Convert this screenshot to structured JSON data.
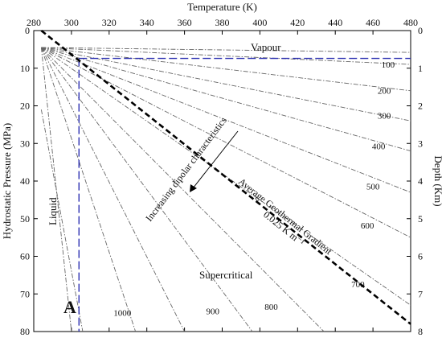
{
  "chart_data": {
    "type": "line",
    "title": "",
    "x_axis": {
      "label": "Temperature (K)",
      "position": "top",
      "range": [
        280,
        480
      ],
      "ticks": [
        "280",
        "300",
        "320",
        "340",
        "360",
        "380",
        "400",
        "420",
        "440",
        "460",
        "480"
      ]
    },
    "y_axis_left": {
      "label": "Hydrostatic Pressure (MPa)",
      "range": [
        0,
        80
      ],
      "inverted": true,
      "ticks": [
        "0",
        "10",
        "20",
        "30",
        "40",
        "50",
        "60",
        "70",
        "80"
      ]
    },
    "y_axis_right": {
      "label": "Depth (Km)",
      "range": [
        0,
        8
      ],
      "inverted": true,
      "ticks": [
        "0",
        "1",
        "2",
        "3",
        "4",
        "5",
        "6",
        "7",
        "8"
      ]
    },
    "grid": false,
    "contour_origin": {
      "x": 284,
      "y": 4.5
    },
    "contours": [
      {
        "label": "100",
        "end": {
          "x": 480,
          "y": 9
        },
        "label_at": {
          "x": 468,
          "y": 9.8
        }
      },
      {
        "label": "200",
        "end": {
          "x": 480,
          "y": 16
        },
        "label_at": {
          "x": 466,
          "y": 16.8
        }
      },
      {
        "label": "300",
        "end": {
          "x": 480,
          "y": 24
        },
        "label_at": {
          "x": 466,
          "y": 23.4
        }
      },
      {
        "label": "400",
        "end": {
          "x": 480,
          "y": 32
        },
        "label_at": {
          "x": 463,
          "y": 31.6
        }
      },
      {
        "label": "500",
        "end": {
          "x": 480,
          "y": 43
        },
        "label_at": {
          "x": 460,
          "y": 42.2
        }
      },
      {
        "label": "600",
        "end": {
          "x": 480,
          "y": 55
        },
        "label_at": {
          "x": 457,
          "y": 52.6
        }
      },
      {
        "label": "700",
        "end": {
          "x": 480,
          "y": 73
        },
        "label_at": {
          "x": 452,
          "y": 68.2
        }
      },
      {
        "label": "800",
        "end": {
          "x": 434,
          "y": 80
        },
        "label_at": {
          "x": 406,
          "y": 74.2
        }
      },
      {
        "label": "900",
        "end": {
          "x": 396,
          "y": 80
        },
        "label_at": {
          "x": 375,
          "y": 75.4
        }
      },
      {
        "label": "1000",
        "end": {
          "x": 360,
          "y": 80
        },
        "label_at": {
          "x": 327,
          "y": 75.8
        }
      },
      {
        "label": "",
        "end": {
          "x": 334,
          "y": 80
        },
        "label_at": null
      },
      {
        "label": "",
        "end": {
          "x": 300,
          "y": 80
        },
        "label_at": null
      }
    ],
    "extra_contours": [
      {
        "from": {
          "x": 284,
          "y": 4.5
        },
        "to": {
          "x": 480,
          "y": 5.8
        }
      },
      {
        "from": {
          "x": 284,
          "y": 21
        },
        "to": {
          "x": 306,
          "y": 80
        }
      }
    ],
    "geothermal_gradient": {
      "label": "Average Geothermal Gradient",
      "sublabel": "0.025 K m⁻¹",
      "from": {
        "x": 284,
        "y": 0
      },
      "to": {
        "x": 480,
        "y": 78
      }
    },
    "critical_point_lines": {
      "pressure": 7.4,
      "temperature": 304
    },
    "regions": {
      "vapour": "Vapour",
      "liquid": "Liquid",
      "supercritical": "Supercritical"
    },
    "annotation": "Increasing dipolar characteristics",
    "point_label": "A"
  }
}
